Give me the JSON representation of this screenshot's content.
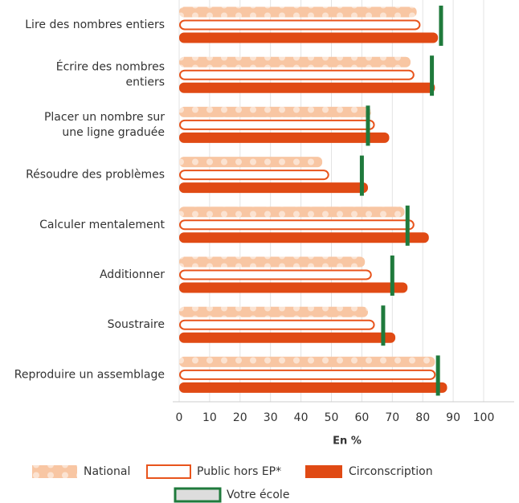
{
  "chart_data": {
    "type": "bar",
    "orientation": "horizontal",
    "categories": [
      [
        "Lire des nombres entiers"
      ],
      [
        "Écrire des nombres",
        "entiers"
      ],
      [
        "Placer un nombre sur",
        "une ligne graduée"
      ],
      [
        "Résoudre des problèmes"
      ],
      [
        "Calculer mentalement"
      ],
      [
        "Additionner"
      ],
      [
        "Soustraire"
      ],
      [
        "Reproduire un assemblage"
      ]
    ],
    "series": [
      {
        "name": "National",
        "color": "#f8c6a3",
        "style": "dotted",
        "values": [
          78,
          76,
          63,
          47,
          74,
          61,
          62,
          84
        ]
      },
      {
        "name": "Public hors EP*",
        "color": "#e8541c",
        "style": "outline",
        "values": [
          79,
          77,
          64,
          49,
          77,
          63,
          64,
          84
        ]
      },
      {
        "name": "Circonscription",
        "color": "#e04a14",
        "style": "solid",
        "values": [
          85,
          84,
          69,
          62,
          82,
          75,
          71,
          88
        ]
      },
      {
        "name": "Votre école",
        "color": "#1f7a3c",
        "style": "marker",
        "values": [
          86,
          83,
          62,
          60,
          75,
          70,
          67,
          85
        ]
      }
    ],
    "xlabel": "En %",
    "xlim": [
      0,
      100
    ],
    "xticks": [
      0,
      10,
      20,
      30,
      40,
      50,
      60,
      70,
      80,
      90,
      100
    ],
    "grid": true
  }
}
